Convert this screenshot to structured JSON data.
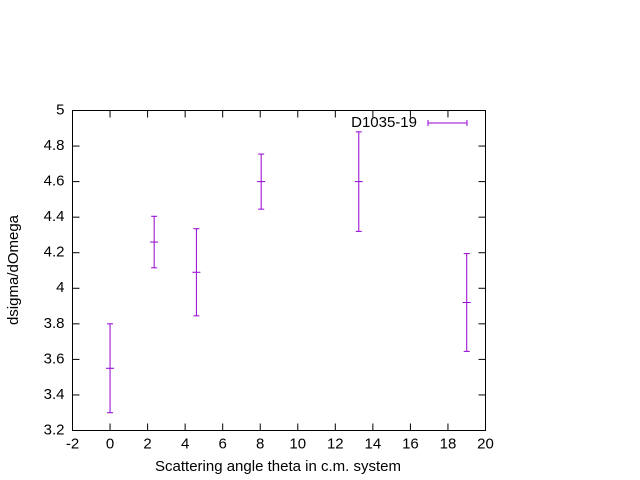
{
  "chart_data": {
    "type": "errorbar",
    "xlabel": "Scattering angle theta in c.m. system",
    "ylabel": "dsigma/dOmega",
    "series": [
      {
        "name": "D1035-19",
        "color": "#9400d3",
        "x": [
          0,
          2.35,
          4.6,
          8.05,
          13.25,
          19
        ],
        "values": [
          3.55,
          4.26,
          4.09,
          4.6,
          4.6,
          3.92
        ],
        "errors": [
          0.25,
          0.145,
          0.245,
          0.155,
          0.28,
          0.275
        ]
      }
    ],
    "xlim": [
      -2,
      20
    ],
    "xticks": [
      -2,
      0,
      2,
      4,
      6,
      8,
      10,
      12,
      14,
      16,
      18,
      20
    ],
    "ylim": [
      3.2,
      5
    ],
    "yticks": [
      3.2,
      3.4,
      3.6,
      3.8,
      4,
      4.2,
      4.4,
      4.6,
      4.8,
      5
    ],
    "legend": "top-right"
  }
}
